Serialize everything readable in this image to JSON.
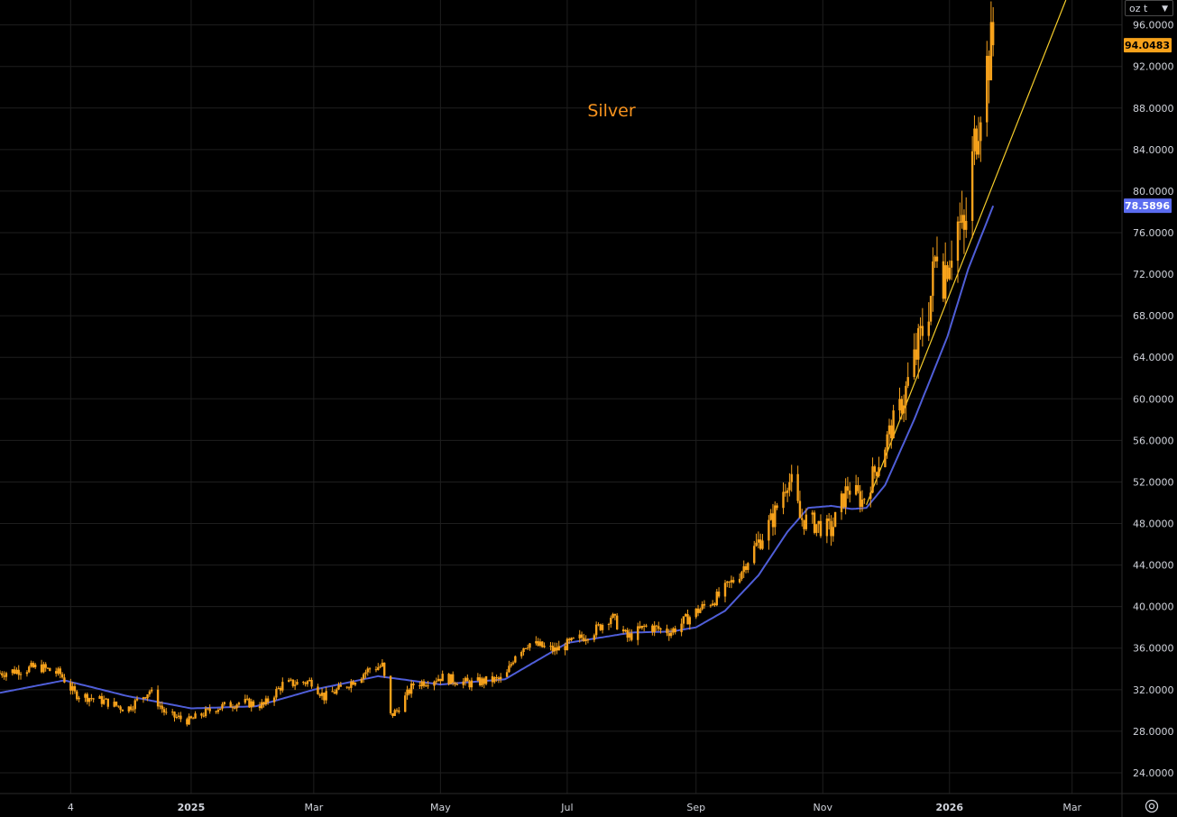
{
  "unit_selector": {
    "label": "oz t",
    "chevron_icon": "chevron-down-icon"
  },
  "settings": {
    "icon": "gear-icon"
  },
  "colors": {
    "background": "#000000",
    "grid": "#1e1e1e",
    "candle": "#f7a21b",
    "moving_average": "#4f5ed8",
    "trendline": "#f5cc2a",
    "title": "#f7931e",
    "axis_text": "#d1d4dc",
    "last_price_badge": "#f7a21b",
    "ma_badge": "#5b6cf0"
  },
  "chart_data": {
    "type": "candlestick",
    "title": "Silver",
    "y_axis": {
      "position": "right",
      "range": [
        22.0,
        98.4
      ],
      "ticks": [
        "24.0000",
        "28.0000",
        "32.0000",
        "36.0000",
        "40.0000",
        "44.0000",
        "48.0000",
        "52.0000",
        "56.0000",
        "60.0000",
        "64.0000",
        "68.0000",
        "72.0000",
        "76.0000",
        "80.0000",
        "84.0000",
        "88.0000",
        "92.0000",
        "96.0000"
      ]
    },
    "x_axis": {
      "ticks": [
        "4",
        "2025",
        "Mar",
        "May",
        "Jul",
        "Sep",
        "Nov",
        "2026",
        "Mar"
      ],
      "tick_dates": [
        "2024-11-04",
        "2025-01-01",
        "2025-03-01",
        "2025-05-01",
        "2025-07-01",
        "2025-09-01",
        "2025-11-01",
        "2026-01-01",
        "2026-03-01"
      ],
      "range": [
        "2024-10-01",
        "2026-03-25"
      ]
    },
    "grid": true,
    "last_price": {
      "value": "94.0483"
    },
    "moving_average_label": {
      "value": "78.5896"
    },
    "price_path": [
      [
        "2024-10-01",
        33.6
      ],
      [
        "2024-10-20",
        34.2
      ],
      [
        "2024-10-30",
        33.5
      ],
      [
        "2024-11-06",
        31.6
      ],
      [
        "2024-11-20",
        30.9
      ],
      [
        "2024-12-01",
        30.1
      ],
      [
        "2024-12-12",
        31.9
      ],
      [
        "2024-12-20",
        29.6
      ],
      [
        "2024-12-31",
        29.0
      ],
      [
        "2025-01-12",
        30.2
      ],
      [
        "2025-01-25",
        30.8
      ],
      [
        "2025-02-05",
        30.5
      ],
      [
        "2025-02-14",
        32.5
      ],
      [
        "2025-02-28",
        32.8
      ],
      [
        "2025-03-06",
        31.3
      ],
      [
        "2025-03-15",
        32.2
      ],
      [
        "2025-03-28",
        34.0
      ],
      [
        "2025-04-03",
        34.3
      ],
      [
        "2025-04-07",
        29.5
      ],
      [
        "2025-04-10",
        30.0
      ],
      [
        "2025-04-18",
        32.5
      ],
      [
        "2025-05-01",
        33.2
      ],
      [
        "2025-05-15",
        32.6
      ],
      [
        "2025-05-25",
        32.9
      ],
      [
        "2025-06-01",
        33.0
      ],
      [
        "2025-06-06",
        35.5
      ],
      [
        "2025-06-12",
        36.5
      ],
      [
        "2025-06-25",
        35.8
      ],
      [
        "2025-07-05",
        36.7
      ],
      [
        "2025-07-15",
        37.8
      ],
      [
        "2025-07-22",
        39.1
      ],
      [
        "2025-07-30",
        37.0
      ],
      [
        "2025-08-08",
        38.1
      ],
      [
        "2025-08-20",
        37.6
      ],
      [
        "2025-09-01",
        39.5
      ],
      [
        "2025-09-12",
        41.0
      ],
      [
        "2025-09-22",
        43.2
      ],
      [
        "2025-10-01",
        46.2
      ],
      [
        "2025-10-08",
        48.5
      ],
      [
        "2025-10-15",
        52.3
      ],
      [
        "2025-10-18",
        51.5
      ],
      [
        "2025-10-21",
        48.5
      ],
      [
        "2025-10-28",
        48.0
      ],
      [
        "2025-11-05",
        47.3
      ],
      [
        "2025-11-13",
        51.5
      ],
      [
        "2025-11-20",
        50.2
      ],
      [
        "2025-11-27",
        53.5
      ],
      [
        "2025-12-04",
        57.2
      ],
      [
        "2025-12-10",
        60.0
      ],
      [
        "2025-12-17",
        65.0
      ],
      [
        "2025-12-23",
        70.0
      ],
      [
        "2025-12-27",
        76.5
      ],
      [
        "2025-12-29",
        72.0
      ],
      [
        "2025-12-31",
        73.5
      ],
      [
        "2026-01-05",
        77.0
      ],
      [
        "2026-01-08",
        75.5
      ],
      [
        "2026-01-13",
        84.5
      ],
      [
        "2026-01-16",
        89.0
      ],
      [
        "2026-01-20",
        93.0
      ],
      [
        "2026-01-22",
        94.05
      ]
    ],
    "moving_average": [
      [
        "2024-10-01",
        31.7
      ],
      [
        "2024-11-01",
        32.9
      ],
      [
        "2024-12-01",
        31.4
      ],
      [
        "2025-01-01",
        30.2
      ],
      [
        "2025-02-01",
        30.4
      ],
      [
        "2025-03-01",
        32.0
      ],
      [
        "2025-04-01",
        33.3
      ],
      [
        "2025-05-01",
        32.5
      ],
      [
        "2025-06-01",
        33.0
      ],
      [
        "2025-07-01",
        36.5
      ],
      [
        "2025-08-01",
        37.5
      ],
      [
        "2025-08-20",
        37.6
      ],
      [
        "2025-09-01",
        38.0
      ],
      [
        "2025-09-15",
        39.6
      ],
      [
        "2025-10-01",
        43.0
      ],
      [
        "2025-10-15",
        47.2
      ],
      [
        "2025-10-25",
        49.5
      ],
      [
        "2025-11-05",
        49.7
      ],
      [
        "2025-11-15",
        49.4
      ],
      [
        "2025-11-22",
        49.5
      ],
      [
        "2025-12-01",
        51.7
      ],
      [
        "2025-12-15",
        58.0
      ],
      [
        "2025-12-31",
        66.0
      ],
      [
        "2026-01-10",
        72.5
      ],
      [
        "2026-01-22",
        78.59
      ]
    ],
    "trendline": {
      "start": [
        "2025-11-22",
        49.8
      ],
      "end": [
        "2026-02-26",
        98.4
      ]
    }
  }
}
